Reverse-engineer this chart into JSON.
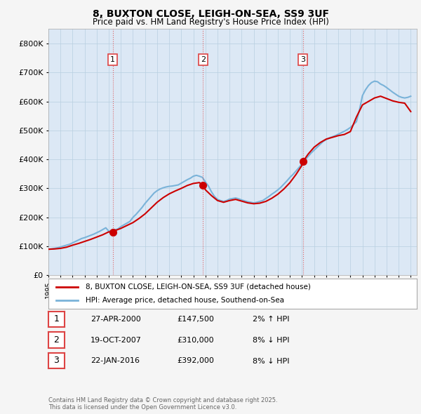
{
  "title_line1": "8, BUXTON CLOSE, LEIGH-ON-SEA, SS9 3UF",
  "title_line2": "Price paid vs. HM Land Registry's House Price Index (HPI)",
  "ylim": [
    0,
    850000
  ],
  "yticks": [
    0,
    100000,
    200000,
    300000,
    400000,
    500000,
    600000,
    700000,
    800000
  ],
  "background_color": "#f5f5f5",
  "plot_bg_color": "#dce8f5",
  "hpi_color": "#7ab3d9",
  "price_color": "#cc0000",
  "sale_marker_color": "#cc0000",
  "dashed_line_color": "#dd4444",
  "legend_label_price": "8, BUXTON CLOSE, LEIGH-ON-SEA, SS9 3UF (detached house)",
  "legend_label_hpi": "HPI: Average price, detached house, Southend-on-Sea",
  "footnote": "Contains HM Land Registry data © Crown copyright and database right 2025.\nThis data is licensed under the Open Government Licence v3.0.",
  "sales": [
    {
      "date_x": 2000.32,
      "price": 147500,
      "label": "1",
      "annotation": "27-APR-2000",
      "amount": "£147,500",
      "hpi_rel": "2% ↑ HPI"
    },
    {
      "date_x": 2007.8,
      "price": 310000,
      "label": "2",
      "annotation": "19-OCT-2007",
      "amount": "£310,000",
      "hpi_rel": "8% ↓ HPI"
    },
    {
      "date_x": 2016.07,
      "price": 392000,
      "label": "3",
      "annotation": "22-JAN-2016",
      "amount": "£392,000",
      "hpi_rel": "8% ↓ HPI"
    }
  ],
  "hpi_x": [
    1995,
    1995.25,
    1995.5,
    1995.75,
    1996,
    1996.25,
    1996.5,
    1996.75,
    1997,
    1997.25,
    1997.5,
    1997.75,
    1998,
    1998.25,
    1998.5,
    1998.75,
    1999,
    1999.25,
    1999.5,
    1999.75,
    2000,
    2000.25,
    2000.5,
    2000.75,
    2001,
    2001.25,
    2001.5,
    2001.75,
    2002,
    2002.25,
    2002.5,
    2002.75,
    2003,
    2003.25,
    2003.5,
    2003.75,
    2004,
    2004.25,
    2004.5,
    2004.75,
    2005,
    2005.25,
    2005.5,
    2005.75,
    2006,
    2006.25,
    2006.5,
    2006.75,
    2007,
    2007.25,
    2007.5,
    2007.75,
    2008,
    2008.25,
    2008.5,
    2008.75,
    2009,
    2009.25,
    2009.5,
    2009.75,
    2010,
    2010.25,
    2010.5,
    2010.75,
    2011,
    2011.25,
    2011.5,
    2011.75,
    2012,
    2012.25,
    2012.5,
    2012.75,
    2013,
    2013.25,
    2013.5,
    2013.75,
    2014,
    2014.25,
    2014.5,
    2014.75,
    2015,
    2015.25,
    2015.5,
    2015.75,
    2016,
    2016.25,
    2016.5,
    2016.75,
    2017,
    2017.25,
    2017.5,
    2017.75,
    2018,
    2018.25,
    2018.5,
    2018.75,
    2019,
    2019.25,
    2019.5,
    2019.75,
    2020,
    2020.25,
    2020.5,
    2020.75,
    2021,
    2021.25,
    2021.5,
    2021.75,
    2022,
    2022.25,
    2022.5,
    2022.75,
    2023,
    2023.25,
    2023.5,
    2023.75,
    2024,
    2024.25,
    2024.5,
    2024.75,
    2025
  ],
  "hpi_y": [
    90000,
    91000,
    93000,
    95000,
    98000,
    101000,
    104000,
    107000,
    112000,
    117000,
    122000,
    127000,
    130000,
    134000,
    138000,
    142000,
    147000,
    152000,
    158000,
    164000,
    152000,
    154000,
    157000,
    160000,
    168000,
    174000,
    180000,
    186000,
    200000,
    210000,
    222000,
    234000,
    248000,
    260000,
    272000,
    284000,
    292000,
    298000,
    302000,
    305000,
    307000,
    308000,
    310000,
    312000,
    318000,
    324000,
    330000,
    335000,
    342000,
    345000,
    342000,
    338000,
    322000,
    308000,
    288000,
    272000,
    262000,
    258000,
    255000,
    258000,
    263000,
    265000,
    267000,
    264000,
    260000,
    257000,
    254000,
    252000,
    250000,
    252000,
    255000,
    258000,
    265000,
    272000,
    280000,
    287000,
    295000,
    304000,
    315000,
    326000,
    338000,
    348000,
    360000,
    372000,
    385000,
    398000,
    410000,
    422000,
    432000,
    442000,
    452000,
    462000,
    468000,
    474000,
    478000,
    482000,
    487000,
    492000,
    497000,
    503000,
    510000,
    520000,
    530000,
    570000,
    620000,
    640000,
    655000,
    665000,
    670000,
    668000,
    660000,
    655000,
    648000,
    640000,
    632000,
    625000,
    618000,
    614000,
    612000,
    614000,
    618000
  ],
  "price_x": [
    1995,
    1995.5,
    1996,
    1996.5,
    1997,
    1997.5,
    1998,
    1998.5,
    1999,
    1999.5,
    2000,
    2000.32,
    2000.5,
    2001,
    2001.5,
    2002,
    2002.5,
    2003,
    2003.5,
    2004,
    2004.5,
    2005,
    2005.5,
    2006,
    2006.5,
    2007,
    2007.5,
    2007.8,
    2008,
    2008.5,
    2009,
    2009.5,
    2010,
    2010.5,
    2011,
    2011.5,
    2012,
    2012.5,
    2013,
    2013.5,
    2014,
    2014.5,
    2015,
    2015.5,
    2016,
    2016.07,
    2016.5,
    2017,
    2017.5,
    2018,
    2018.5,
    2019,
    2019.5,
    2020,
    2020.5,
    2021,
    2021.5,
    2022,
    2022.5,
    2023,
    2023.5,
    2024,
    2024.5,
    2025
  ],
  "price_y": [
    90000,
    91000,
    93000,
    97000,
    104000,
    110000,
    117000,
    124000,
    132000,
    140000,
    150000,
    147500,
    154000,
    162000,
    172000,
    182000,
    196000,
    212000,
    232000,
    252000,
    268000,
    281000,
    291000,
    300000,
    310000,
    317000,
    320000,
    310000,
    295000,
    275000,
    258000,
    252000,
    258000,
    262000,
    256000,
    250000,
    247000,
    249000,
    255000,
    266000,
    280000,
    298000,
    320000,
    348000,
    380000,
    392000,
    418000,
    442000,
    458000,
    470000,
    476000,
    482000,
    486000,
    496000,
    546000,
    588000,
    600000,
    612000,
    618000,
    610000,
    602000,
    597000,
    594000,
    565000
  ],
  "xlim": [
    1995,
    2025.5
  ],
  "xticks": [
    1995,
    1996,
    1997,
    1998,
    1999,
    2000,
    2001,
    2002,
    2003,
    2004,
    2005,
    2006,
    2007,
    2008,
    2009,
    2010,
    2011,
    2012,
    2013,
    2014,
    2015,
    2016,
    2017,
    2018,
    2019,
    2020,
    2021,
    2022,
    2023,
    2024,
    2025
  ]
}
